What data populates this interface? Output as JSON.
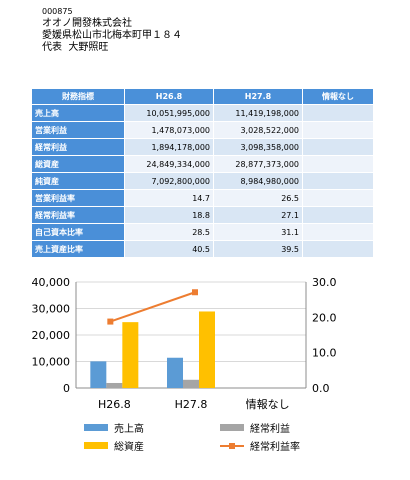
{
  "company": {
    "code": "000875",
    "name": "オオノ開發株式会社",
    "address": "愛媛県松山市北梅本町甲１８４",
    "rep_label": "代表",
    "rep_name": "大野照旺"
  },
  "table": {
    "headers": [
      "財務指標",
      "H26.8",
      "H27.8",
      "情報なし"
    ],
    "rows": [
      {
        "label": "売上高",
        "h26": "10,051,995,000",
        "h27": "11,419,198,000",
        "na": ""
      },
      {
        "label": "営業利益",
        "h26": "1,478,073,000",
        "h27": "3,028,522,000",
        "na": ""
      },
      {
        "label": "経常利益",
        "h26": "1,894,178,000",
        "h27": "3,098,358,000",
        "na": ""
      },
      {
        "label": "総資産",
        "h26": "24,849,334,000",
        "h27": "28,877,373,000",
        "na": ""
      },
      {
        "label": "純資産",
        "h26": "7,092,800,000",
        "h27": "8,984,980,000",
        "na": ""
      },
      {
        "label": "営業利益率",
        "h26": "14.7",
        "h27": "26.5",
        "na": ""
      },
      {
        "label": "経常利益率",
        "h26": "18.8",
        "h27": "27.1",
        "na": ""
      },
      {
        "label": "自己資本比率",
        "h26": "28.5",
        "h27": "31.1",
        "na": ""
      },
      {
        "label": "売上資産比率",
        "h26": "40.5",
        "h27": "39.5",
        "na": ""
      }
    ]
  },
  "chart_data": {
    "type": "bar",
    "categories": [
      "H26.8",
      "H27.8",
      "情報なし"
    ],
    "series": [
      {
        "name": "売上高",
        "type": "bar",
        "axis": "left",
        "color": "#5b9bd5",
        "values": [
          10052,
          11419,
          null
        ]
      },
      {
        "name": "経常利益",
        "type": "bar",
        "axis": "left",
        "color": "#a5a5a5",
        "values": [
          1894,
          3098,
          null
        ]
      },
      {
        "name": "総資産",
        "type": "bar",
        "axis": "left",
        "color": "#ffc000",
        "values": [
          24849,
          28877,
          null
        ]
      },
      {
        "name": "経常利益率",
        "type": "line",
        "axis": "right",
        "color": "#ed7d31",
        "values": [
          18.8,
          27.1,
          null
        ]
      }
    ],
    "y_left": {
      "min": 0,
      "max": 40000,
      "ticks": [
        "0",
        "10,000",
        "20,000",
        "30,000",
        "40,000"
      ]
    },
    "y_right": {
      "min": 0,
      "max": 30,
      "ticks": [
        "0.0",
        "10.0",
        "20.0",
        "30.0"
      ]
    },
    "grid": true,
    "legend_position": "bottom"
  }
}
